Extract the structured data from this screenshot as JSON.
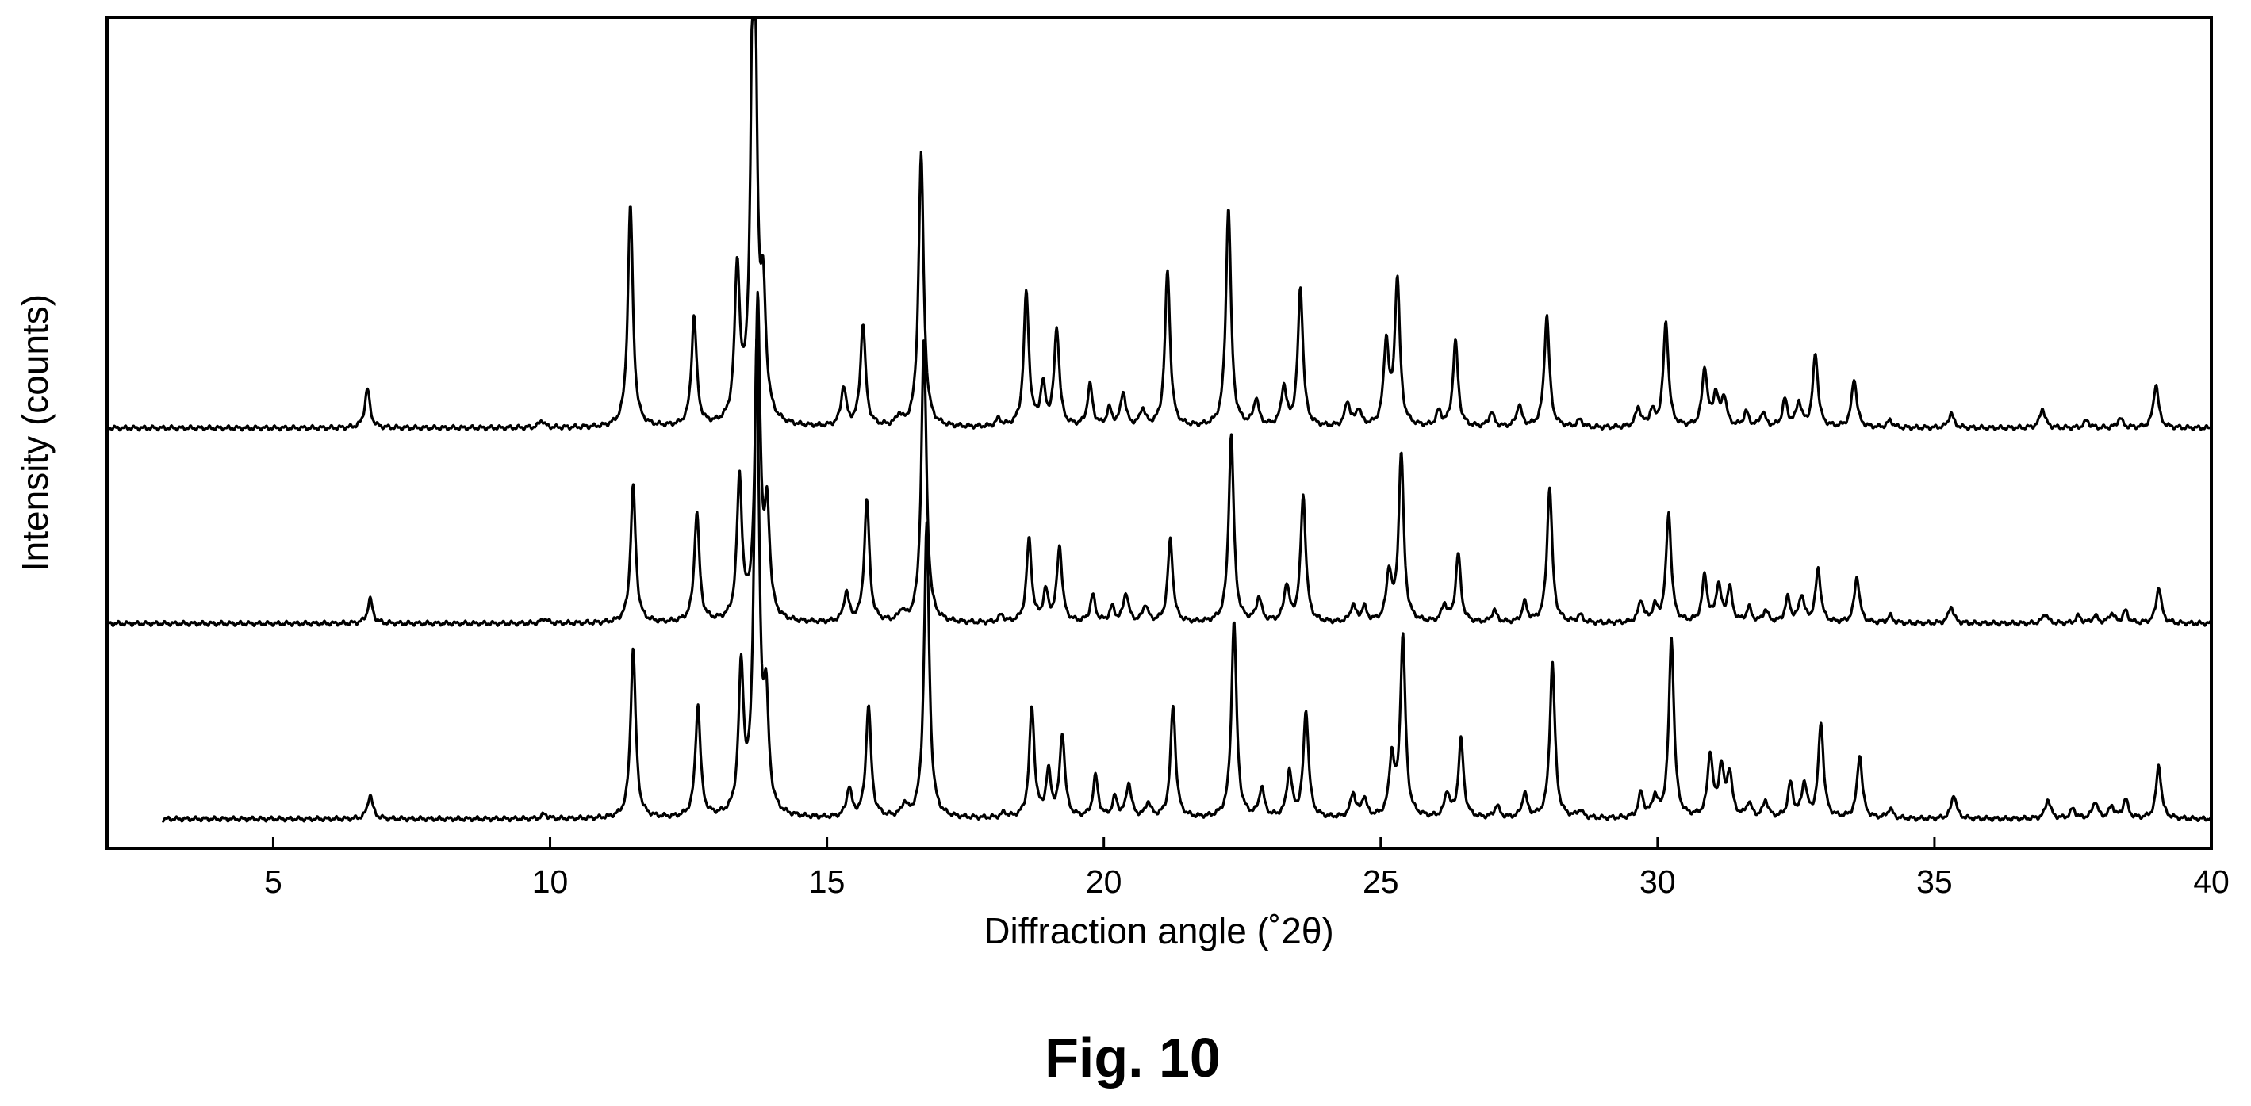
{
  "caption": "Fig. 10",
  "chart_data": {
    "type": "line",
    "title": "",
    "xlabel": "Diffraction angle (˚2θ)",
    "ylabel": "Intensity (counts)",
    "xlim": [
      2,
      40
    ],
    "ylim": [
      0,
      3.4
    ],
    "y_ticks_shown": false,
    "x_ticks": [
      5,
      10,
      15,
      20,
      25,
      30,
      35,
      40
    ],
    "x_tick_labels": [
      "5",
      "10",
      "15",
      "20",
      "25",
      "30",
      "35",
      "40"
    ],
    "grid": false,
    "legend": "none",
    "line_color": "#000000",
    "series": [
      {
        "offset": 0.12,
        "x_start": 3.0,
        "peaks": [
          [
            6.75,
            0.1
          ],
          [
            9.9,
            0.02
          ],
          [
            11.5,
            0.7
          ],
          [
            12.67,
            0.46
          ],
          [
            13.45,
            0.59
          ],
          [
            13.73,
            1.9
          ],
          [
            13.9,
            0.42
          ],
          [
            15.4,
            0.12
          ],
          [
            15.75,
            0.46
          ],
          [
            16.4,
            0.05
          ],
          [
            16.8,
            1.2
          ],
          [
            18.2,
            0.02
          ],
          [
            18.7,
            0.45
          ],
          [
            19.0,
            0.18
          ],
          [
            19.25,
            0.34
          ],
          [
            19.85,
            0.17
          ],
          [
            20.2,
            0.08
          ],
          [
            20.45,
            0.14
          ],
          [
            20.8,
            0.06
          ],
          [
            21.25,
            0.46
          ],
          [
            22.35,
            0.81
          ],
          [
            22.85,
            0.12
          ],
          [
            23.35,
            0.19
          ],
          [
            23.65,
            0.44
          ],
          [
            24.5,
            0.1
          ],
          [
            24.7,
            0.08
          ],
          [
            25.2,
            0.24
          ],
          [
            25.4,
            0.74
          ],
          [
            26.2,
            0.1
          ],
          [
            26.45,
            0.32
          ],
          [
            27.1,
            0.05
          ],
          [
            27.6,
            0.1
          ],
          [
            28.1,
            0.64
          ],
          [
            28.6,
            0.03
          ],
          [
            29.7,
            0.1
          ],
          [
            29.95,
            0.08
          ],
          [
            30.25,
            0.74
          ],
          [
            30.95,
            0.26
          ],
          [
            31.15,
            0.2
          ],
          [
            31.3,
            0.18
          ],
          [
            31.65,
            0.06
          ],
          [
            31.95,
            0.07
          ],
          [
            32.4,
            0.14
          ],
          [
            32.65,
            0.14
          ],
          [
            32.95,
            0.39
          ],
          [
            33.65,
            0.26
          ],
          [
            34.2,
            0.04
          ],
          [
            35.35,
            0.1
          ],
          [
            37.05,
            0.08
          ],
          [
            37.5,
            0.04
          ],
          [
            37.9,
            0.07
          ],
          [
            38.2,
            0.05
          ],
          [
            38.45,
            0.08
          ],
          [
            39.05,
            0.22
          ]
        ]
      },
      {
        "offset": 0.92,
        "x_start": 2.0,
        "peaks": [
          [
            6.75,
            0.1
          ],
          [
            9.9,
            0.02
          ],
          [
            11.5,
            0.56
          ],
          [
            12.65,
            0.45
          ],
          [
            13.42,
            0.58
          ],
          [
            13.75,
            1.3
          ],
          [
            13.92,
            0.42
          ],
          [
            15.35,
            0.12
          ],
          [
            15.72,
            0.5
          ],
          [
            16.35,
            0.04
          ],
          [
            16.75,
            1.15
          ],
          [
            18.15,
            0.03
          ],
          [
            18.65,
            0.34
          ],
          [
            18.95,
            0.12
          ],
          [
            19.2,
            0.31
          ],
          [
            19.8,
            0.11
          ],
          [
            20.15,
            0.06
          ],
          [
            20.4,
            0.12
          ],
          [
            20.75,
            0.07
          ],
          [
            21.2,
            0.34
          ],
          [
            22.3,
            0.77
          ],
          [
            22.8,
            0.1
          ],
          [
            23.3,
            0.15
          ],
          [
            23.6,
            0.52
          ],
          [
            24.5,
            0.07
          ],
          [
            24.7,
            0.06
          ],
          [
            25.15,
            0.2
          ],
          [
            25.37,
            0.69
          ],
          [
            26.15,
            0.07
          ],
          [
            26.4,
            0.28
          ],
          [
            27.05,
            0.05
          ],
          [
            27.6,
            0.08
          ],
          [
            28.05,
            0.56
          ],
          [
            28.6,
            0.03
          ],
          [
            29.7,
            0.09
          ],
          [
            29.95,
            0.06
          ],
          [
            30.2,
            0.45
          ],
          [
            30.85,
            0.19
          ],
          [
            31.1,
            0.15
          ],
          [
            31.3,
            0.14
          ],
          [
            31.65,
            0.06
          ],
          [
            31.95,
            0.05
          ],
          [
            32.35,
            0.1
          ],
          [
            32.6,
            0.11
          ],
          [
            32.9,
            0.22
          ],
          [
            33.6,
            0.19
          ],
          [
            34.2,
            0.03
          ],
          [
            35.3,
            0.07
          ],
          [
            37.0,
            0.04
          ],
          [
            37.6,
            0.03
          ],
          [
            37.9,
            0.03
          ],
          [
            38.2,
            0.04
          ],
          [
            38.45,
            0.05
          ],
          [
            39.05,
            0.15
          ]
        ]
      },
      {
        "offset": 1.72,
        "x_start": 2.0,
        "peaks": [
          [
            6.7,
            0.16
          ],
          [
            9.85,
            0.03
          ],
          [
            11.45,
            0.91
          ],
          [
            12.6,
            0.45
          ],
          [
            13.38,
            0.62
          ],
          [
            13.68,
            2.4
          ],
          [
            13.85,
            0.45
          ],
          [
            15.3,
            0.16
          ],
          [
            15.65,
            0.42
          ],
          [
            16.3,
            0.04
          ],
          [
            16.7,
            1.12
          ],
          [
            18.1,
            0.03
          ],
          [
            18.6,
            0.55
          ],
          [
            18.9,
            0.16
          ],
          [
            19.15,
            0.4
          ],
          [
            19.75,
            0.17
          ],
          [
            20.1,
            0.07
          ],
          [
            20.35,
            0.14
          ],
          [
            20.7,
            0.07
          ],
          [
            21.15,
            0.64
          ],
          [
            22.25,
            0.9
          ],
          [
            22.75,
            0.11
          ],
          [
            23.25,
            0.16
          ],
          [
            23.55,
            0.57
          ],
          [
            24.4,
            0.1
          ],
          [
            24.6,
            0.07
          ],
          [
            25.1,
            0.34
          ],
          [
            25.3,
            0.6
          ],
          [
            26.05,
            0.06
          ],
          [
            26.35,
            0.35
          ],
          [
            27.0,
            0.06
          ],
          [
            27.5,
            0.09
          ],
          [
            28.0,
            0.46
          ],
          [
            28.6,
            0.03
          ],
          [
            29.65,
            0.08
          ],
          [
            29.9,
            0.06
          ],
          [
            30.15,
            0.43
          ],
          [
            30.85,
            0.24
          ],
          [
            31.05,
            0.13
          ],
          [
            31.2,
            0.12
          ],
          [
            31.6,
            0.06
          ],
          [
            31.9,
            0.06
          ],
          [
            32.3,
            0.11
          ],
          [
            32.55,
            0.1
          ],
          [
            32.85,
            0.3
          ],
          [
            33.55,
            0.2
          ],
          [
            34.2,
            0.03
          ],
          [
            35.3,
            0.06
          ],
          [
            36.95,
            0.08
          ],
          [
            37.75,
            0.03
          ],
          [
            38.35,
            0.04
          ],
          [
            39.0,
            0.18
          ]
        ]
      }
    ]
  }
}
